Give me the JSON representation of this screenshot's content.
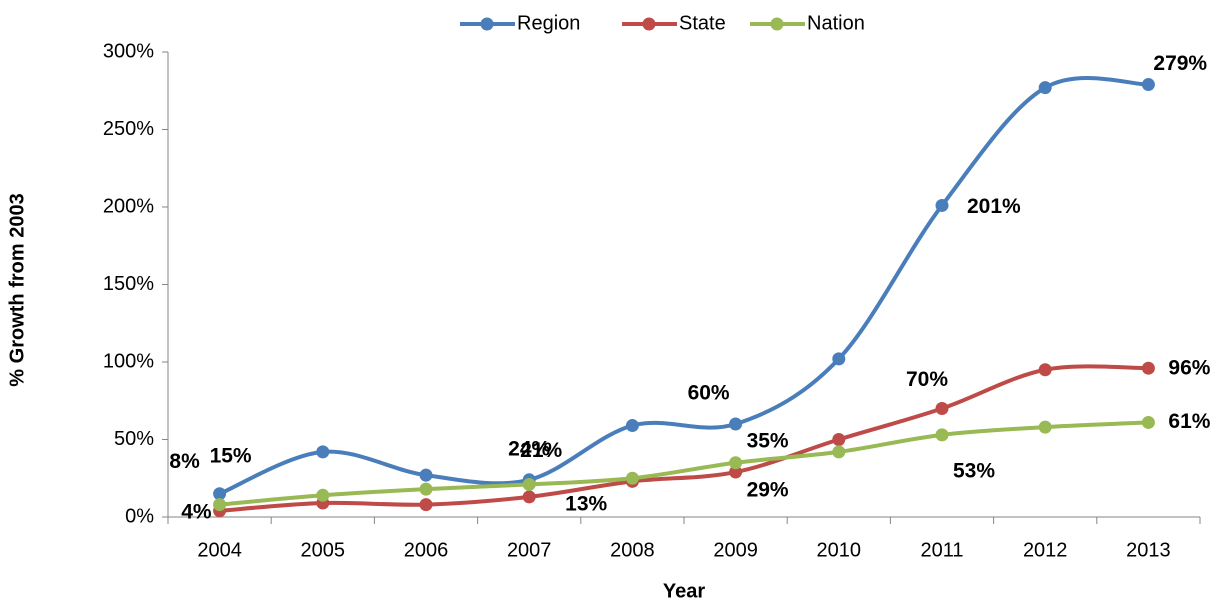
{
  "chart_data": {
    "type": "line",
    "x_label": "Year",
    "y_label": "% Growth from 2003",
    "categories": [
      "2004",
      "2005",
      "2006",
      "2007",
      "2008",
      "2009",
      "2010",
      "2011",
      "2012",
      "2013"
    ],
    "series": [
      {
        "name": "Region",
        "color": "#4a7ebb",
        "values": [
          15,
          42,
          27,
          24,
          59,
          60,
          102,
          201,
          277,
          279
        ],
        "value_labels": [
          "15%",
          null,
          null,
          "24%",
          null,
          "60%",
          null,
          "201%",
          null,
          "279%"
        ]
      },
      {
        "name": "State",
        "color": "#be4b48",
        "values": [
          4,
          9,
          8,
          13,
          23,
          29,
          50,
          70,
          95,
          96
        ],
        "value_labels": [
          "4%",
          null,
          null,
          "13%",
          null,
          "29%",
          null,
          "70%",
          null,
          "96%"
        ]
      },
      {
        "name": "Nation",
        "color": "#98b954",
        "values": [
          8,
          14,
          18,
          21,
          25,
          35,
          42,
          53,
          58,
          61
        ],
        "value_labels": [
          "8%",
          null,
          null,
          "21%",
          null,
          "35%",
          null,
          "53%",
          null,
          "61%"
        ]
      }
    ],
    "ylim": [
      0,
      300
    ],
    "yticks": [
      {
        "value": 0,
        "label": "0%"
      },
      {
        "value": 50,
        "label": "50%"
      },
      {
        "value": 100,
        "label": "100%"
      },
      {
        "value": 150,
        "label": "150%"
      },
      {
        "value": 200,
        "label": "200%"
      },
      {
        "value": 250,
        "label": "250%"
      },
      {
        "value": 300,
        "label": "300%"
      }
    ],
    "legend": "top",
    "smooth": true
  }
}
